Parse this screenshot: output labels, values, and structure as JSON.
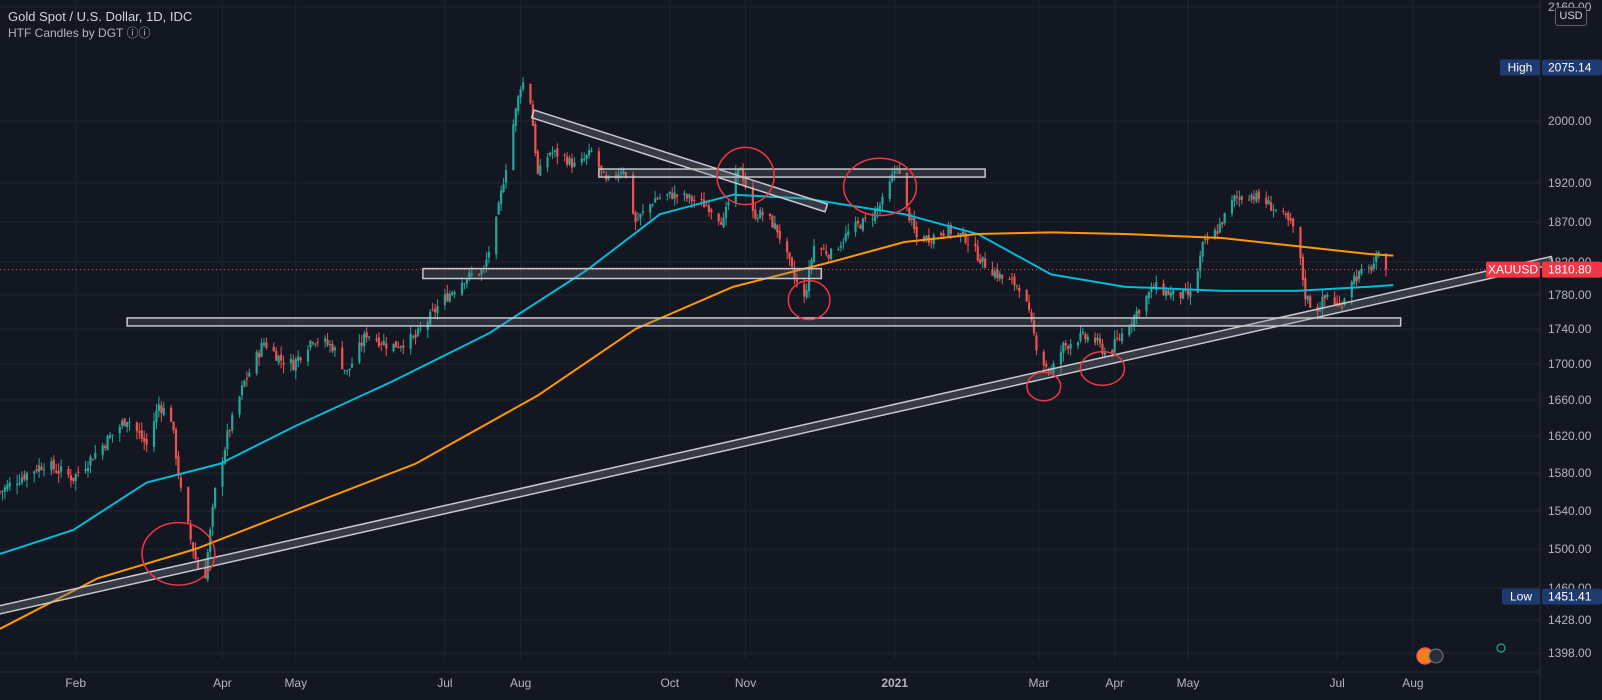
{
  "header": {
    "title": "Gold Spot / U.S. Dollar, 1D, IDC",
    "indicator": "HTF Candles by DGT ⓘⓘ",
    "currency_badge": "USD"
  },
  "price_tags": {
    "high": {
      "label": "High",
      "value": "2075.14"
    },
    "low": {
      "label": "Low",
      "value": "1451.41"
    },
    "last": {
      "label": "XAUUSD",
      "value": "1810.80"
    }
  },
  "colors": {
    "background": "#131722",
    "up_candle": "#26a69a",
    "down_candle": "#ef5350",
    "ma_fast": "#00bcd4",
    "ma_slow": "#ff9800",
    "annotation_circle": "#f23645",
    "zone_fill": "#787b86",
    "grid": "#1f2430"
  },
  "chart_data": {
    "type": "candlestick",
    "symbol": "XAUUSD",
    "timeframe": "1D",
    "ylim": [
      1380,
      2160
    ],
    "y_ticks": [
      "2160.00",
      "2000.00",
      "1920.00",
      "1870.00",
      "1820.00",
      "1780.00",
      "1740.00",
      "1700.00",
      "1660.00",
      "1620.00",
      "1580.00",
      "1540.00",
      "1500.00",
      "1460.00",
      "1428.00",
      "1398.00"
    ],
    "x_labels": [
      "Feb",
      "Apr",
      "May",
      "Jul",
      "Aug",
      "Oct",
      "Nov",
      "2021",
      "Mar",
      "Apr",
      "May",
      "Jul",
      "Aug"
    ],
    "x_label_days": [
      31,
      91,
      121,
      182,
      213,
      274,
      305,
      366,
      425,
      456,
      486,
      547,
      578
    ],
    "x_range_days": [
      0,
      630
    ],
    "price_path": [
      [
        0,
        1560
      ],
      [
        8,
        1575
      ],
      [
        18,
        1590
      ],
      [
        30,
        1575
      ],
      [
        42,
        1610
      ],
      [
        52,
        1640
      ],
      [
        60,
        1610
      ],
      [
        65,
        1655
      ],
      [
        70,
        1640
      ],
      [
        74,
        1560
      ],
      [
        78,
        1510
      ],
      [
        81,
        1480
      ],
      [
        84,
        1475
      ],
      [
        88,
        1560
      ],
      [
        93,
        1620
      ],
      [
        100,
        1680
      ],
      [
        108,
        1725
      ],
      [
        115,
        1705
      ],
      [
        120,
        1700
      ],
      [
        128,
        1730
      ],
      [
        136,
        1720
      ],
      [
        142,
        1690
      ],
      [
        150,
        1735
      ],
      [
        160,
        1720
      ],
      [
        170,
        1730
      ],
      [
        180,
        1770
      ],
      [
        190,
        1800
      ],
      [
        198,
        1810
      ],
      [
        203,
        1870
      ],
      [
        208,
        1960
      ],
      [
        213,
        2050
      ],
      [
        216,
        2060
      ],
      [
        220,
        1930
      ],
      [
        225,
        1960
      ],
      [
        230,
        1955
      ],
      [
        236,
        1940
      ],
      [
        242,
        1960
      ],
      [
        248,
        1920
      ],
      [
        255,
        1940
      ],
      [
        260,
        1870
      ],
      [
        268,
        1900
      ],
      [
        275,
        1905
      ],
      [
        282,
        1900
      ],
      [
        290,
        1890
      ],
      [
        296,
        1870
      ],
      [
        300,
        1920
      ],
      [
        303,
        1940
      ],
      [
        308,
        1880
      ],
      [
        313,
        1880
      ],
      [
        318,
        1860
      ],
      [
        325,
        1800
      ],
      [
        329,
        1775
      ],
      [
        333,
        1840
      ],
      [
        340,
        1830
      ],
      [
        348,
        1860
      ],
      [
        356,
        1875
      ],
      [
        362,
        1900
      ],
      [
        367,
        1945
      ],
      [
        370,
        1895
      ],
      [
        375,
        1850
      ],
      [
        380,
        1850
      ],
      [
        388,
        1860
      ],
      [
        395,
        1850
      ],
      [
        402,
        1820
      ],
      [
        410,
        1800
      ],
      [
        418,
        1790
      ],
      [
        425,
        1710
      ],
      [
        430,
        1690
      ],
      [
        435,
        1720
      ],
      [
        441,
        1730
      ],
      [
        447,
        1730
      ],
      [
        453,
        1710
      ],
      [
        458,
        1730
      ],
      [
        465,
        1760
      ],
      [
        472,
        1790
      ],
      [
        480,
        1780
      ],
      [
        488,
        1780
      ],
      [
        492,
        1840
      ],
      [
        498,
        1860
      ],
      [
        505,
        1900
      ],
      [
        512,
        1905
      ],
      [
        518,
        1895
      ],
      [
        524,
        1880
      ],
      [
        530,
        1860
      ],
      [
        534,
        1780
      ],
      [
        538,
        1760
      ],
      [
        543,
        1780
      ],
      [
        548,
        1765
      ],
      [
        553,
        1800
      ],
      [
        560,
        1810
      ],
      [
        565,
        1830
      ],
      [
        567,
        1810.8
      ]
    ],
    "moving_averages": [
      {
        "period": 50,
        "color": "#00bcd4",
        "points": [
          [
            0,
            1495
          ],
          [
            30,
            1520
          ],
          [
            60,
            1570
          ],
          [
            90,
            1590
          ],
          [
            120,
            1630
          ],
          [
            160,
            1680
          ],
          [
            200,
            1735
          ],
          [
            240,
            1810
          ],
          [
            270,
            1880
          ],
          [
            300,
            1905
          ],
          [
            330,
            1900
          ],
          [
            370,
            1880
          ],
          [
            400,
            1855
          ],
          [
            430,
            1805
          ],
          [
            460,
            1790
          ],
          [
            500,
            1785
          ],
          [
            530,
            1785
          ],
          [
            560,
            1790
          ],
          [
            570,
            1792
          ]
        ]
      },
      {
        "period": 200,
        "color": "#ff9800",
        "points": [
          [
            0,
            1420
          ],
          [
            40,
            1470
          ],
          [
            80,
            1500
          ],
          [
            120,
            1540
          ],
          [
            170,
            1590
          ],
          [
            220,
            1665
          ],
          [
            260,
            1740
          ],
          [
            300,
            1790
          ],
          [
            340,
            1820
          ],
          [
            370,
            1845
          ],
          [
            400,
            1855
          ],
          [
            430,
            1857
          ],
          [
            460,
            1855
          ],
          [
            500,
            1850
          ],
          [
            530,
            1840
          ],
          [
            560,
            1830
          ],
          [
            570,
            1828
          ]
        ]
      }
    ],
    "annotations": {
      "trendline": {
        "from": [
          -15,
          1430
        ],
        "to": [
          635,
          1822
        ]
      },
      "descending_line": {
        "from": [
          218,
          2010
        ],
        "to": [
          338,
          1888
        ]
      },
      "zones": [
        {
          "from": [
            245,
            1938
          ],
          "to": [
            403,
            1930
          ]
        },
        {
          "from": [
            173,
            1812
          ],
          "to": [
            336,
            1800
          ]
        },
        {
          "from": [
            52,
            1753
          ],
          "to": [
            573,
            1745
          ]
        }
      ],
      "circles": [
        [
          73,
          1495,
          28,
          24
        ],
        [
          305,
          1929,
          22,
          22
        ],
        [
          331,
          1774,
          16,
          15
        ],
        [
          360,
          1915,
          28,
          22
        ],
        [
          427,
          1675,
          13,
          11
        ],
        [
          451,
          1695,
          17,
          13
        ]
      ]
    }
  }
}
